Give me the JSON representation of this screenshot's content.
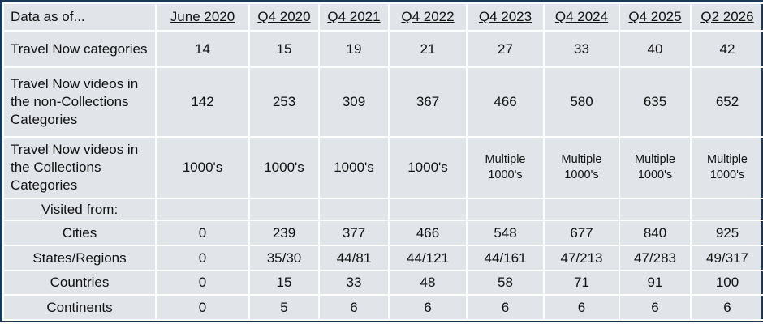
{
  "table": {
    "header": [
      "Data as of...",
      "June 2020",
      "Q4 2020",
      "Q4 2021",
      "Q4 2022",
      "Q4 2023",
      "Q4 2024",
      "Q4 2025",
      "Q2 2026"
    ],
    "rows": [
      [
        "Travel Now categories",
        14,
        15,
        19,
        21,
        27,
        33,
        40,
        42
      ],
      [
        "Travel Now videos in the non-Collections Categories",
        142,
        253,
        309,
        367,
        466,
        580,
        635,
        652
      ],
      [
        "Travel Now videos in the Collections Categories",
        "1000's",
        "1000's",
        "1000's",
        "1000's",
        "Multiple 1000's",
        "Multiple 1000's",
        "Multiple 1000's",
        "Multiple 1000's"
      ],
      [
        "Visited from:"
      ],
      [
        "Cities",
        0,
        239,
        377,
        466,
        548,
        677,
        840,
        925
      ],
      [
        "States/Regions",
        0,
        "35/30",
        "44/81",
        "44/121",
        "44/161",
        "47/213",
        "47/283",
        "49/317"
      ],
      [
        "Countries",
        0,
        15,
        33,
        48,
        58,
        71,
        91,
        100
      ],
      [
        "Continents",
        0,
        5,
        6,
        6,
        6,
        6,
        6,
        6
      ]
    ]
  }
}
